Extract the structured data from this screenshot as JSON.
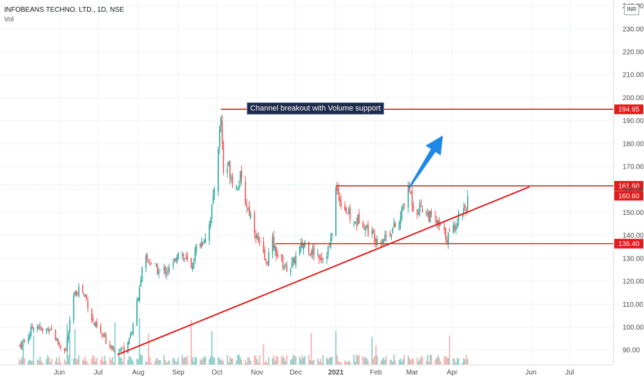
{
  "legend": {
    "symbol_line": "INFOBEANS TECHNO. LTD., 1D, NSE",
    "indicator": "Vol"
  },
  "currency_label": "INR",
  "annotation_text": "Channel breakout with Volume support",
  "colors": {
    "up": "#26a69a",
    "down": "#ef5350",
    "volume_up": "#80cbc4",
    "volume_down": "#f6a9a8",
    "trendline": "#e31b1b",
    "arrow": "#1e88e5",
    "price_label_bg": "#e31b1b",
    "grid": "#f0f3fa",
    "axis_text": "#4a4a4a"
  },
  "chart_data": {
    "type": "candlestick",
    "symbol": "INFOBEANS TECHNO. LTD.",
    "interval": "1D",
    "exchange": "NSE",
    "y_axis": {
      "range": [
        86,
        245
      ],
      "ticks": [
        "90.00",
        "100.00",
        "110.00",
        "120.00",
        "130.00",
        "140.00",
        "150.00",
        "160.00",
        "170.00",
        "180.00",
        "190.00",
        "200.00",
        "210.00",
        "220.00",
        "230.00",
        "240.00"
      ],
      "tick_values": [
        90,
        100,
        110,
        120,
        130,
        140,
        150,
        160,
        170,
        180,
        190,
        200,
        210,
        220,
        230,
        240
      ]
    },
    "x_axis": {
      "labels": [
        "Jun",
        "Jul",
        "Aug",
        "Sep",
        "Oct",
        "Nov",
        "Dec",
        "2021",
        "Feb",
        "Mar",
        "Apr",
        "Jun",
        "Jul"
      ],
      "label_days": [
        31,
        61,
        92,
        123,
        153,
        184,
        214,
        245,
        276,
        304,
        335,
        396,
        426
      ],
      "range_days": [
        -15,
        460
      ]
    },
    "series_anchors": [
      [
        0,
        92
      ],
      [
        6,
        95
      ],
      [
        12,
        102
      ],
      [
        18,
        98
      ],
      [
        24,
        100
      ],
      [
        30,
        93
      ],
      [
        36,
        90
      ],
      [
        42,
        113
      ],
      [
        47,
        118
      ],
      [
        52,
        112
      ],
      [
        57,
        102
      ],
      [
        63,
        97
      ],
      [
        69,
        93
      ],
      [
        76,
        90
      ],
      [
        82,
        91
      ],
      [
        88,
        100
      ],
      [
        93,
        118
      ],
      [
        97,
        130
      ],
      [
        102,
        128
      ],
      [
        108,
        124
      ],
      [
        113,
        125
      ],
      [
        118,
        125
      ],
      [
        123,
        134
      ],
      [
        128,
        130
      ],
      [
        133,
        125
      ],
      [
        137,
        135
      ],
      [
        141,
        137
      ],
      [
        146,
        142
      ],
      [
        150,
        155
      ],
      [
        154,
        180
      ],
      [
        156,
        192
      ],
      [
        158,
        168
      ],
      [
        162,
        170
      ],
      [
        167,
        160
      ],
      [
        171,
        165
      ],
      [
        175,
        155
      ],
      [
        180,
        147
      ],
      [
        186,
        135
      ],
      [
        191,
        128
      ],
      [
        196,
        137
      ],
      [
        201,
        130
      ],
      [
        206,
        126
      ],
      [
        211,
        127
      ],
      [
        216,
        133
      ],
      [
        221,
        137
      ],
      [
        226,
        133
      ],
      [
        231,
        132
      ],
      [
        236,
        130
      ],
      [
        241,
        137
      ],
      [
        245,
        160
      ],
      [
        249,
        155
      ],
      [
        254,
        150
      ],
      [
        259,
        145
      ],
      [
        264,
        148
      ],
      [
        269,
        143
      ],
      [
        274,
        140
      ],
      [
        279,
        138
      ],
      [
        284,
        140
      ],
      [
        289,
        143
      ],
      [
        294,
        145
      ],
      [
        298,
        155
      ],
      [
        302,
        160
      ],
      [
        306,
        150
      ],
      [
        311,
        153
      ],
      [
        316,
        149
      ],
      [
        321,
        147
      ],
      [
        326,
        143
      ],
      [
        331,
        139
      ],
      [
        336,
        143
      ],
      [
        341,
        150
      ],
      [
        346,
        153
      ],
      [
        349,
        161
      ]
    ],
    "price_levels": [
      {
        "value": 194.95,
        "label": "194.95",
        "start_day": 156
      },
      {
        "value": 161.6,
        "label": "161.60",
        "start_day": 245
      },
      {
        "value": 136.4,
        "label": "136.40",
        "start_day": 198
      }
    ],
    "last_price": {
      "value": 160.6,
      "label": "160.60"
    },
    "trendline": {
      "start": [
        76,
        88
      ],
      "end": [
        395,
        161.2
      ]
    },
    "volume": {
      "typical_range": "low to moderate with spikes near Aug, Oct, Dec, Mar and Apr"
    }
  }
}
